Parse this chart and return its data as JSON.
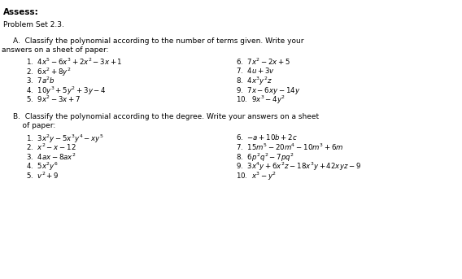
{
  "bg_color": "#ffffff",
  "text_color": "#000000",
  "title": "Assess:",
  "subtitle": "Problem Set 2.3.",
  "section_a_line1": "A.  Classify the polynomial according to the number of terms given. Write your",
  "section_a_line2": "answers on a sheet of paper:",
  "section_a_left": [
    "1.  $4x^5 - 6x^3 + 2x^2 - 3x + 1$",
    "2.  $6x^2 + 8y^2$",
    "3.  $7a^2b$",
    "4.  $10y^3 + 5y^2 + 3y - 4$",
    "5.  $9x^2 - 3x + 7$"
  ],
  "section_a_right": [
    "6.  $7x^2 - 2x + 5$",
    "7.  $4u + 3v$",
    "8.  $4x^3y^2z$",
    "9.  $7x - 6xy - 14y$",
    "10.  $9x^3 - 4y^2$"
  ],
  "section_b_line1": "B.  Classify the polynomial according to the degree. Write your answers on a sheet",
  "section_b_line2": "    of paper:",
  "section_b_left": [
    "1.  $3x^2y - 5x^3y^4 - xy^5$",
    "2.  $x^2 - x - 12$",
    "3.  $4ax - 8ax^2$",
    "4.  $5x^2y^6$",
    "5.  $v^2 + 9$"
  ],
  "section_b_right": [
    "6.  $-a + 10b + 2c$",
    "7.  $15m^5 - 20m^4 - 10m^3 + 6m$",
    "8.  $6p^2q^2 - 7pq^2$",
    "9.  $3x^4y + 6x^2z - 18x^3y + 42xyz - 9$",
    "10.  $x^3 - y^2$"
  ],
  "font_size_title": 7.5,
  "font_size_body": 6.5,
  "font_size_items": 6.2,
  "fig_width": 5.68,
  "fig_height": 3.43,
  "dpi": 100
}
